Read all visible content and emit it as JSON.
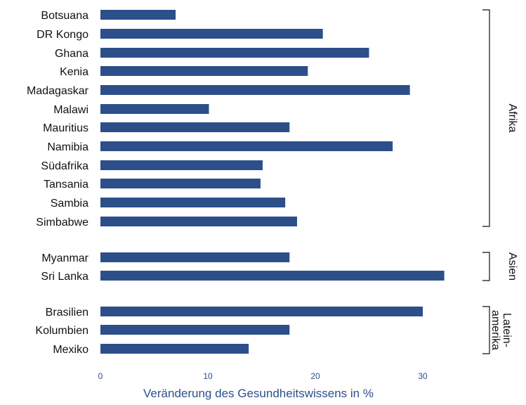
{
  "chart_data": {
    "type": "bar",
    "orientation": "horizontal",
    "title": "",
    "xlabel": "Veränderung des Gesundheitswissens in %",
    "ylabel": "",
    "xlim": [
      0,
      33
    ],
    "xticks": [
      0,
      10,
      20,
      30
    ],
    "grid": false,
    "bar_color": "#2c4f8a",
    "categories": [
      "Botsuana",
      "DR Kongo",
      "Ghana",
      "Kenia",
      "Madagaskar",
      "Malawi",
      "Mauritius",
      "Namibia",
      "Südafrika",
      "Tansania",
      "Sambia",
      "Simbabwe",
      "Myanmar",
      "Sri Lanka",
      "Brasilien",
      "Kolumbien",
      "Mexiko"
    ],
    "values": [
      7.0,
      20.7,
      25.0,
      19.3,
      28.8,
      10.1,
      17.6,
      27.2,
      15.1,
      14.9,
      17.2,
      18.3,
      17.6,
      32.0,
      30.0,
      17.6,
      13.8
    ],
    "groups": [
      {
        "label_lines": [
          "Afrika"
        ],
        "categories": [
          "Botsuana",
          "DR Kongo",
          "Ghana",
          "Kenia",
          "Madagaskar",
          "Malawi",
          "Mauritius",
          "Namibia",
          "Südafrika",
          "Tansania",
          "Sambia",
          "Simbabwe"
        ]
      },
      {
        "label_lines": [
          "Asien"
        ],
        "categories": [
          "Myanmar",
          "Sri Lanka"
        ]
      },
      {
        "label_lines": [
          "Latein-",
          "amerika"
        ],
        "categories": [
          "Brasilien",
          "Kolumbien",
          "Mexiko"
        ]
      }
    ]
  }
}
